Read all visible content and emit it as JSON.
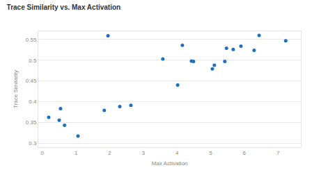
{
  "chart_data": {
    "type": "scatter",
    "title": "Trace Similarity vs. Max Activation",
    "x_label": "Max Activation",
    "y_label": "Trace Similarity",
    "x": [
      0.19,
      0.54,
      0.5,
      0.66,
      1.06,
      1.84,
      1.95,
      2.3,
      2.63,
      3.58,
      4.02,
      4.16,
      4.43,
      4.49,
      5.05,
      5.11,
      5.42,
      5.47,
      5.67,
      5.9,
      6.29,
      6.44,
      7.23
    ],
    "values": [
      0.362,
      0.383,
      0.355,
      0.343,
      0.317,
      0.379,
      0.559,
      0.388,
      0.391,
      0.503,
      0.44,
      0.536,
      0.498,
      0.497,
      0.479,
      0.488,
      0.497,
      0.529,
      0.526,
      0.534,
      0.524,
      0.56,
      0.547
    ],
    "color": "#1f6fc0",
    "marker": "circle",
    "xlim": [
      -0.12,
      7.68
    ],
    "xticks": [
      0,
      1,
      2,
      3,
      4,
      5,
      6,
      7
    ],
    "ylim": [
      0.29,
      0.57
    ],
    "yticks": [
      0.3,
      0.35,
      0.4,
      0.45,
      0.5,
      0.55
    ],
    "grid": true
  }
}
